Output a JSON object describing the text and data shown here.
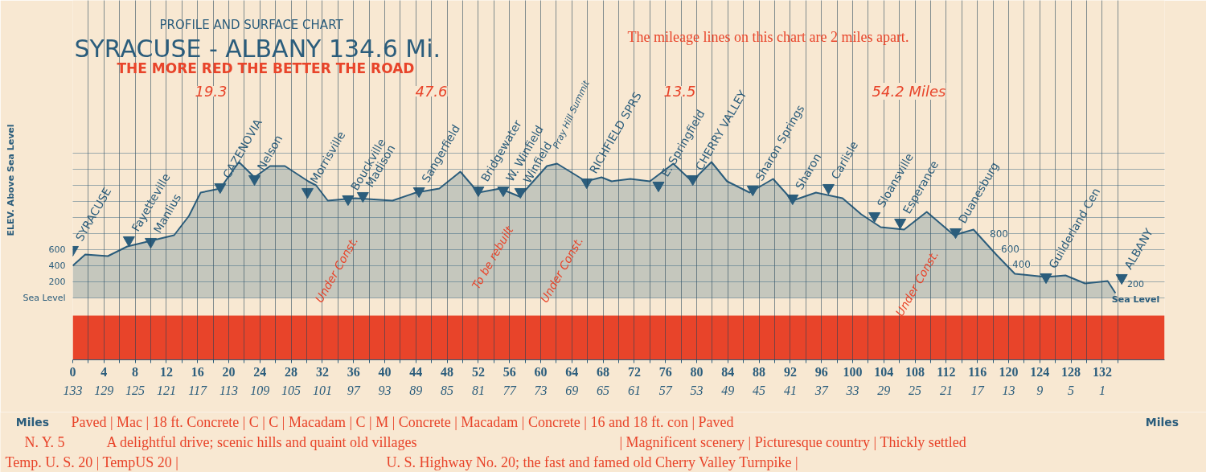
{
  "chart_data": {
    "type": "area",
    "title": "SYRACUSE - ALBANY 134.6 Mi.",
    "subtitle": "PROFILE AND SURFACE CHART",
    "ylabel": "ELEV. Above Sea Level",
    "xlabel": "Miles",
    "x2label": "Miles",
    "xlim": [
      0,
      140
    ],
    "xticks": [
      0,
      {
        "value": 2,
        "label": null
      },
      4,
      {
        "value": 6,
        "label": null
      },
      8,
      {
        "value": 10,
        "label": null
      },
      12,
      {
        "value": 14,
        "label": null
      },
      16,
      {
        "value": 18,
        "label": null
      },
      20,
      {
        "value": 22,
        "label": null
      },
      24,
      {
        "value": 26,
        "label": null
      },
      28,
      {
        "value": 30,
        "label": null
      },
      32,
      {
        "value": 34,
        "label": null
      },
      36,
      {
        "value": 38,
        "label": null
      },
      40,
      {
        "value": 42,
        "label": null
      },
      44,
      {
        "value": 46,
        "label": null
      },
      48,
      {
        "value": 50,
        "label": null
      },
      52,
      {
        "value": 54,
        "label": null
      },
      56,
      {
        "value": 58,
        "label": null
      },
      60,
      {
        "value": 62,
        "label": null
      },
      64,
      {
        "value": 66,
        "label": null
      },
      68,
      {
        "value": 70,
        "label": null
      },
      72,
      {
        "value": 74,
        "label": null
      },
      76,
      {
        "value": 78,
        "label": null
      },
      80,
      {
        "value": 82,
        "label": null
      },
      84,
      {
        "value": 86,
        "label": null
      },
      88,
      {
        "value": 90,
        "label": null
      },
      92,
      {
        "value": 94,
        "label": null
      },
      96,
      {
        "value": 98,
        "label": null
      },
      100,
      {
        "value": 102,
        "label": null
      },
      104,
      {
        "value": 106,
        "label": null
      },
      108,
      {
        "value": 110,
        "label": null
      },
      112,
      {
        "value": 114,
        "label": null
      },
      116,
      {
        "value": 118,
        "label": null
      },
      120,
      {
        "value": 122,
        "label": null
      },
      124,
      {
        "value": 126,
        "label": null
      },
      128,
      {
        "value": 130,
        "label": null
      },
      132,
      {
        "value": 134,
        "label": null
      }
    ],
    "x2lim": [
      133,
      -7
    ],
    "x2ticks": [
      133,
      129,
      125,
      121,
      117,
      113,
      109,
      105,
      101,
      97,
      93,
      89,
      85,
      81,
      77,
      73,
      69,
      65,
      61,
      57,
      53,
      49,
      45,
      41,
      37,
      33,
      29,
      25,
      21,
      17,
      13,
      9,
      5,
      1
    ],
    "ylim": [
      -770,
      3700
    ],
    "yticks": [
      {
        "value": 0,
        "label": "Sea Level"
      },
      200,
      400,
      600,
      {
        "value": 800,
        "label": null
      },
      {
        "value": 1000,
        "label": null
      },
      {
        "value": 1200,
        "label": null
      },
      {
        "value": 1400,
        "label": null
      },
      {
        "value": 1600,
        "label": null
      },
      {
        "value": 1800,
        "label": null
      }
    ],
    "grid": true,
    "series": [
      {
        "color": "#c5c7bd",
        "x": [
          0,
          1.6,
          4.5,
          7.0,
          10.0,
          13.0,
          14.9,
          16.4,
          18.9,
          21.3,
          23.3,
          25.3,
          27.2,
          30.2,
          31.2,
          32.7,
          36.2,
          41.0,
          44.0,
          47.0,
          49.7,
          52.0,
          54.8,
          57.3,
          60.8,
          62.1,
          65.8,
          67.8,
          69.1,
          71.5,
          74.0,
          77.0,
          79.4,
          81.9,
          83.9,
          86.8,
          89.8,
          92.3,
          95.3,
          98.7,
          101.1,
          103.6,
          106.6,
          109.5,
          113.0,
          115.5,
          118.4,
          120.8,
          124.8,
          127.3,
          129.8,
          132.7,
          133.7
        ],
        "values": [
          400,
          540,
          520,
          640,
          710,
          780,
          1020,
          1310,
          1360,
          1690,
          1500,
          1640,
          1640,
          1450,
          1400,
          1210,
          1240,
          1210,
          1310,
          1360,
          1570,
          1310,
          1360,
          1260,
          1640,
          1670,
          1450,
          1500,
          1450,
          1480,
          1450,
          1670,
          1450,
          1690,
          1450,
          1310,
          1480,
          1210,
          1310,
          1240,
          1040,
          880,
          850,
          1070,
          780,
          850,
          540,
          300,
          260,
          280,
          180,
          210,
          60
        ]
      },
      {
        "type": "scatter",
        "marker": "triangle",
        "color": "#2b5d7c",
        "x": [
          0,
          7.2,
          10.0,
          18.9,
          23.3,
          30.1,
          35.3,
          37.2,
          44.4,
          52.0,
          55.2,
          57.4,
          65.9,
          75.1,
          79.5,
          87.2,
          92.3,
          96.9,
          102.8,
          106.1,
          113.2,
          124.8,
          134.5
        ],
        "values": [
          600,
          720,
          700,
          1380,
          1480,
          1320,
          1230,
          1270,
          1330,
          1340,
          1340,
          1320,
          1440,
          1400,
          1480,
          1350,
          1240,
          1370,
          1020,
          940,
          820,
          260,
          250
        ],
        "value_labels": [
          "SYRACUSE",
          "Fayetteville",
          "Manlius",
          "CAZENOVIA",
          "Nelson",
          "Morrisville",
          "Bouckville",
          "Madison",
          "Sangerfield",
          "Bridgewater",
          "W. Winfield",
          "Winfield",
          "RICHFIELD SPRS",
          "E. Springfield",
          "CHERRY VALLEY",
          "Sharon Springs",
          "Sharon",
          "Carlisle",
          "Sloansville",
          "Esperance",
          "Duanesburg",
          "Guilderland Cen",
          "ALBANY"
        ]
      }
    ],
    "bands": [
      {
        "axis": "y",
        "from": -770,
        "to": -220,
        "color": "#e8442a"
      }
    ],
    "annotations": [
      "THE MORE RED THE BETTER THE ROAD",
      "The mileage lines on this chart are 2 miles apart.",
      "Paved | Mac | 18 ft. Concrete | C | C | Macadam | C | M | Concrete | Macadam | Concrete | 16 and 18 ft. con | Paved",
      "N. Y. 5",
      "A delightful drive; scenic hills and quaint old villages",
      "| Magnificent scenery | Picturesque country | Thickly settled",
      "Temp. U. S. 20 | TempUS 20 |",
      "U. S. Highway No. 20; the fast and famed old Cherry Valley Turnpike |",
      "19.3",
      "47.6",
      "13.5",
      "54.2 Miles",
      "Pray Hill Summit",
      "Under Const.",
      "To be rebuilt",
      "Under Const.",
      "Under Const.",
      "800",
      "600",
      "400",
      "200",
      "Sea Level"
    ]
  }
}
